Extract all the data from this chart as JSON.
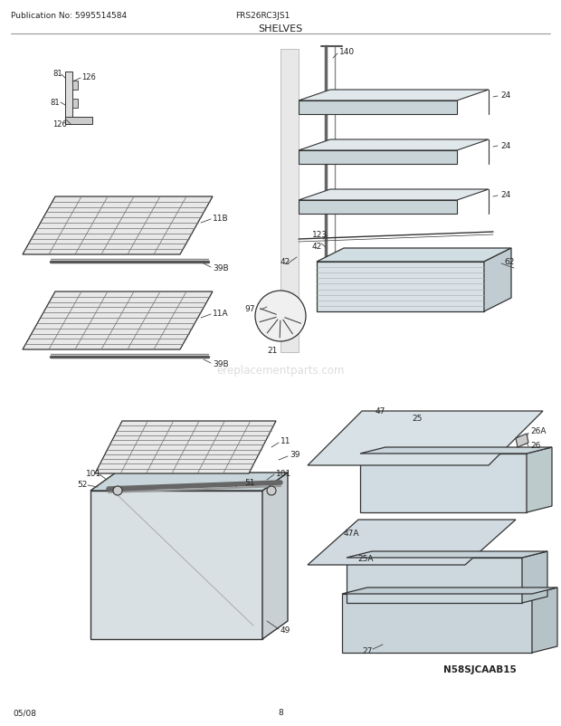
{
  "title": "SHELVES",
  "model": "FRS26RC3JS1",
  "publication": "Publication No: 5995514584",
  "date": "05/08",
  "page": "8",
  "watermark": "ereplacementparts.com",
  "logo": "N58SJCAAB15",
  "bg_color": "#ffffff",
  "line_color": "#555555",
  "lc_dark": "#333333",
  "fill_shelf": "#e0e8ec",
  "fill_shelf_side": "#c8d4d8",
  "fill_bin": "#d8e2e6",
  "fill_bin_side": "#c0cccc",
  "fill_wire": "#e8e8e8"
}
